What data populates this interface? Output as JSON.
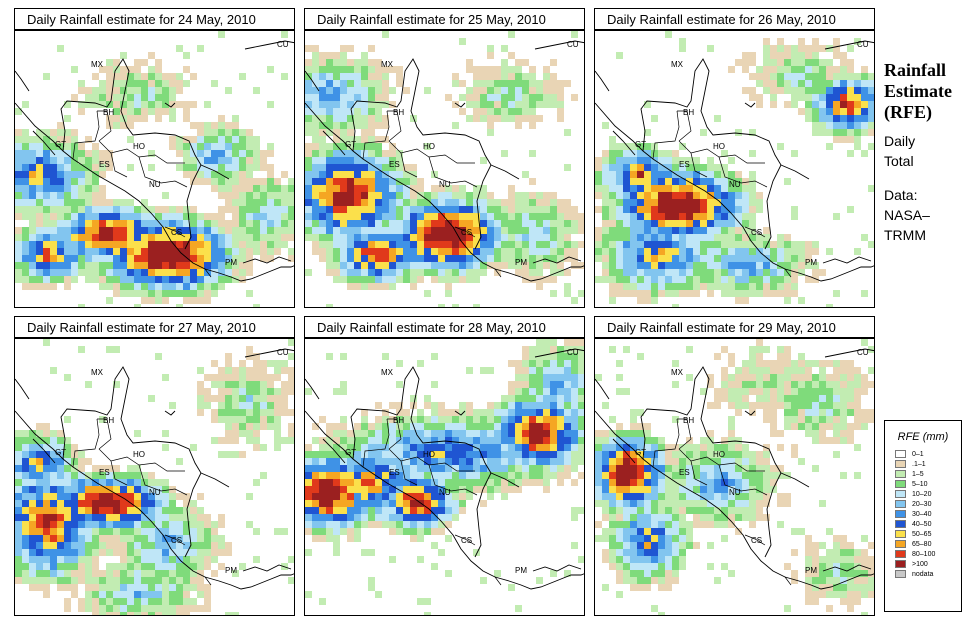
{
  "panels": [
    {
      "title": "Daily Rainfall estimate for  24 May, 2010"
    },
    {
      "title": "Daily Rainfall estimate for  25 May, 2010"
    },
    {
      "title": "Daily Rainfall estimate for  26 May, 2010"
    },
    {
      "title": "Daily Rainfall estimate for  27 May, 2010"
    },
    {
      "title": "Daily Rainfall estimate for  28 May, 2010"
    },
    {
      "title": "Daily Rainfall estimate for  29 May, 2010"
    }
  ],
  "map_labels": [
    "MX",
    "CU",
    "BH",
    "GT",
    "HO",
    "ES",
    "NU",
    "CS",
    "PM"
  ],
  "side": {
    "title": [
      "Rainfall",
      "Estimate",
      "(RFE)"
    ],
    "subtitle": [
      "Daily",
      "Total"
    ],
    "data": [
      "Data:",
      "NASA–",
      "TRMM"
    ]
  },
  "legend": {
    "title": "RFE (mm)",
    "items": [
      {
        "label": "0–1",
        "color": "#ffffff"
      },
      {
        "label": ".1–1",
        "color": "#e9d5b5"
      },
      {
        "label": "1–5",
        "color": "#c2ecb2"
      },
      {
        "label": "5–10",
        "color": "#7fdb7b"
      },
      {
        "label": "10–20",
        "color": "#bfe6f7"
      },
      {
        "label": "20–30",
        "color": "#82c5ef"
      },
      {
        "label": "30–40",
        "color": "#3f92e6"
      },
      {
        "label": "40–50",
        "color": "#1f55d2"
      },
      {
        "label": "50–65",
        "color": "#fbe04b"
      },
      {
        "label": "65–80",
        "color": "#f5a623"
      },
      {
        "label": "80–100",
        "color": "#e0391b"
      },
      {
        "label": ">100",
        "color": "#9b2020"
      },
      {
        "label": "nodata",
        "color": "#c8c8c8"
      }
    ]
  }
}
